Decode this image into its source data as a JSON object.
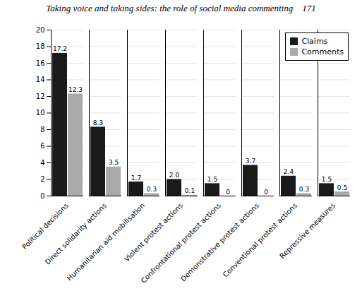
{
  "chart_data": {
    "type": "bar",
    "title": "Taking voice and taking sides: the role of social media commenting    171",
    "categories": [
      "Political decisions",
      "Direct solidarity actions",
      "Humanitarian aid mobilisation",
      "Violent protest actions",
      "Confrontational protest actions",
      "Demonstrative protest actions",
      "Conventional protest actions",
      "Repressive measures"
    ],
    "series": [
      {
        "name": "Claims",
        "color": "#1a1a1a",
        "values": [
          17.2,
          8.3,
          1.7,
          2.0,
          1.5,
          3.7,
          2.4,
          1.5
        ],
        "value_labels": [
          "17.2",
          "8.3",
          "1.7",
          "2.0",
          "1.5",
          "3.7",
          "2.4",
          "1.5"
        ]
      },
      {
        "name": "Comments",
        "color": "#aaaaaa",
        "values": [
          12.3,
          3.5,
          0.3,
          0.1,
          0.0,
          0.0,
          0.3,
          0.5
        ],
        "value_labels": [
          "12.3",
          "3.5",
          "0.3",
          "0.1",
          "0",
          "0",
          "0.3",
          "0.5"
        ]
      }
    ],
    "ylim": [
      0,
      20
    ],
    "yticks": [
      0,
      2,
      4,
      6,
      8,
      10,
      12,
      14,
      16,
      18,
      20
    ],
    "grid": true,
    "legend": "upper right",
    "data_labels": true
  }
}
